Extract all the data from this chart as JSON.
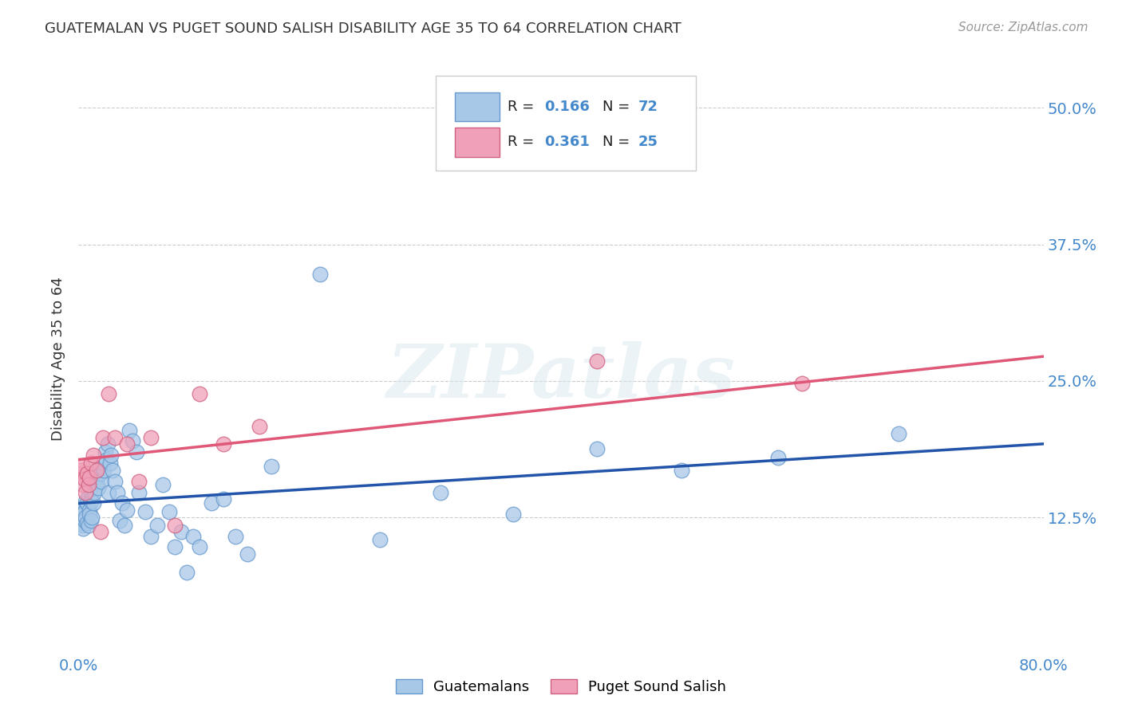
{
  "title": "GUATEMALAN VS PUGET SOUND SALISH DISABILITY AGE 35 TO 64 CORRELATION CHART",
  "source": "Source: ZipAtlas.com",
  "ylabel_label": "Disability Age 35 to 64",
  "xlim": [
    0.0,
    0.8
  ],
  "ylim": [
    -0.02,
    0.56
  ],
  "plot_ylim": [
    0.0,
    0.54
  ],
  "xticks": [
    0.0,
    0.1,
    0.2,
    0.3,
    0.4,
    0.5,
    0.6,
    0.7,
    0.8
  ],
  "xticklabels": [
    "0.0%",
    "",
    "",
    "",
    "",
    "",
    "",
    "",
    "80.0%"
  ],
  "ytick_positions": [
    0.0,
    0.125,
    0.25,
    0.375,
    0.5
  ],
  "ytick_labels": [
    "",
    "12.5%",
    "25.0%",
    "37.5%",
    "50.0%"
  ],
  "blue_color": "#a8c8e8",
  "pink_color": "#f0a0b8",
  "blue_line_color": "#2255aa",
  "pink_line_color": "#e05878",
  "blue_edge_color": "#6699cc",
  "pink_edge_color": "#d06080",
  "watermark_text": "ZIPatlas",
  "background_color": "#ffffff",
  "grid_color": "#cccccc",
  "guatemalans_x": [
    0.001,
    0.002,
    0.002,
    0.003,
    0.003,
    0.004,
    0.004,
    0.005,
    0.005,
    0.006,
    0.006,
    0.007,
    0.007,
    0.008,
    0.008,
    0.009,
    0.009,
    0.01,
    0.01,
    0.011,
    0.011,
    0.012,
    0.012,
    0.013,
    0.014,
    0.015,
    0.016,
    0.017,
    0.018,
    0.019,
    0.02,
    0.021,
    0.022,
    0.023,
    0.024,
    0.025,
    0.026,
    0.027,
    0.028,
    0.03,
    0.032,
    0.034,
    0.036,
    0.038,
    0.04,
    0.042,
    0.045,
    0.048,
    0.05,
    0.055,
    0.06,
    0.065,
    0.07,
    0.075,
    0.08,
    0.085,
    0.09,
    0.095,
    0.1,
    0.11,
    0.12,
    0.13,
    0.14,
    0.16,
    0.2,
    0.25,
    0.3,
    0.36,
    0.43,
    0.5,
    0.58,
    0.68
  ],
  "guatemalans_y": [
    0.128,
    0.132,
    0.12,
    0.135,
    0.118,
    0.128,
    0.115,
    0.13,
    0.122,
    0.14,
    0.125,
    0.138,
    0.12,
    0.145,
    0.118,
    0.132,
    0.128,
    0.14,
    0.122,
    0.148,
    0.125,
    0.155,
    0.138,
    0.148,
    0.162,
    0.158,
    0.152,
    0.17,
    0.165,
    0.158,
    0.175,
    0.168,
    0.185,
    0.178,
    0.192,
    0.148,
    0.175,
    0.182,
    0.168,
    0.158,
    0.148,
    0.122,
    0.138,
    0.118,
    0.132,
    0.205,
    0.195,
    0.185,
    0.148,
    0.13,
    0.108,
    0.118,
    0.155,
    0.13,
    0.098,
    0.112,
    0.075,
    0.108,
    0.098,
    0.138,
    0.142,
    0.108,
    0.092,
    0.172,
    0.348,
    0.105,
    0.148,
    0.128,
    0.188,
    0.168,
    0.18,
    0.202
  ],
  "puget_x": [
    0.001,
    0.002,
    0.003,
    0.004,
    0.005,
    0.006,
    0.007,
    0.008,
    0.009,
    0.01,
    0.012,
    0.015,
    0.018,
    0.02,
    0.025,
    0.03,
    0.04,
    0.05,
    0.06,
    0.08,
    0.1,
    0.12,
    0.15,
    0.43,
    0.6
  ],
  "puget_y": [
    0.165,
    0.168,
    0.172,
    0.155,
    0.16,
    0.148,
    0.165,
    0.155,
    0.162,
    0.175,
    0.182,
    0.168,
    0.112,
    0.198,
    0.238,
    0.198,
    0.192,
    0.158,
    0.198,
    0.118,
    0.238,
    0.192,
    0.208,
    0.268,
    0.248
  ],
  "blue_intercept": 0.138,
  "blue_slope": 0.068,
  "pink_intercept": 0.178,
  "pink_slope": 0.118
}
